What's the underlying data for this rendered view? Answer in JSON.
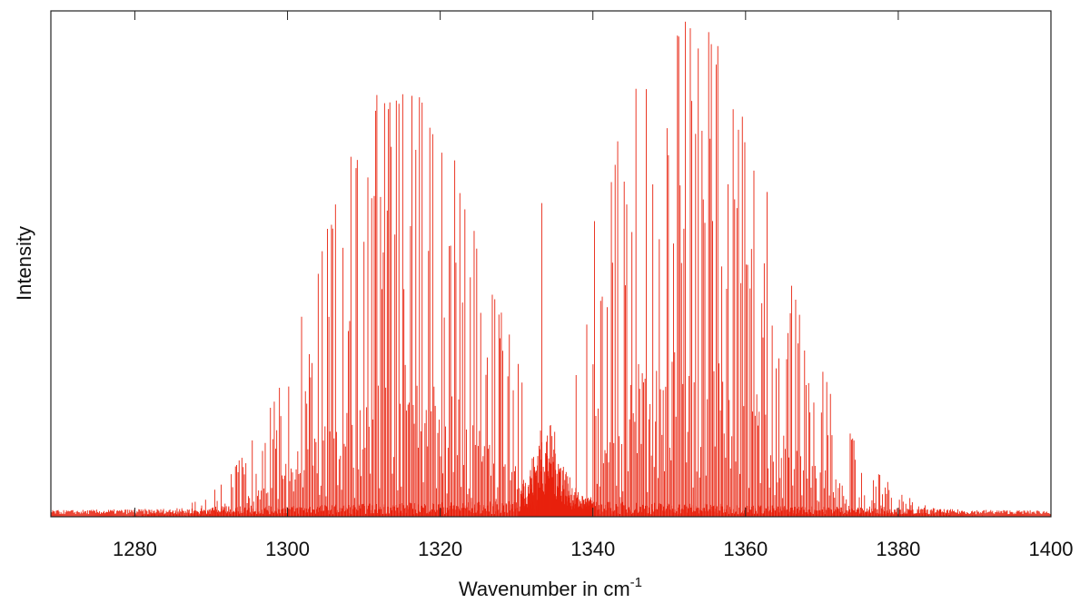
{
  "chart_data": {
    "type": "line",
    "title": "",
    "xlabel": "Wavenumber in cm",
    "xlabel_superscript": "-1",
    "ylabel": "Intensity",
    "xlim": [
      1269,
      1400
    ],
    "ylim": [
      0,
      1
    ],
    "x_ticks": [
      1280,
      1300,
      1320,
      1340,
      1360,
      1380,
      1400
    ],
    "x_tick_labels": [
      "1280",
      "1300",
      "1320",
      "1340",
      "1360",
      "1380",
      "1400"
    ],
    "grid": false,
    "legend": "none",
    "series": [
      {
        "color": "#e8210d",
        "style": "stick-spectrum",
        "branches": [
          {
            "branch": "P",
            "center_x": 1315,
            "peak_y": 0.88,
            "x_range": [
              1269,
              1331
            ]
          },
          {
            "branch": "Q",
            "center_x": 1333.5,
            "peak_y": 0.62,
            "x_range": [
              1330.5,
              1340
            ]
          },
          {
            "branch": "R",
            "center_x": 1352,
            "peak_y": 1.0,
            "x_range": [
              1340,
              1400
            ]
          }
        ]
      }
    ]
  }
}
